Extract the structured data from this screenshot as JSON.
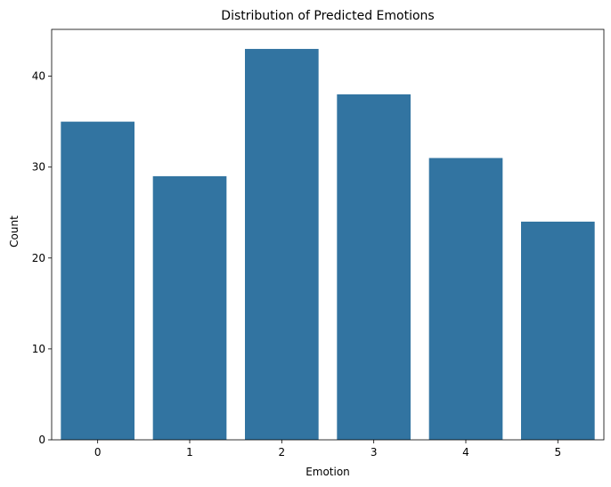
{
  "chart_data": {
    "type": "bar",
    "title": "Distribution of Predicted Emotions",
    "xlabel": "Emotion",
    "ylabel": "Count",
    "categories": [
      "0",
      "1",
      "2",
      "3",
      "4",
      "5"
    ],
    "values": [
      35,
      29,
      43,
      38,
      31,
      24
    ],
    "ylim": [
      0,
      45.15
    ],
    "yticks": [
      "0",
      "10",
      "20",
      "30",
      "40"
    ],
    "grid": false,
    "legend": "none",
    "bar_color": "#3274a1"
  }
}
